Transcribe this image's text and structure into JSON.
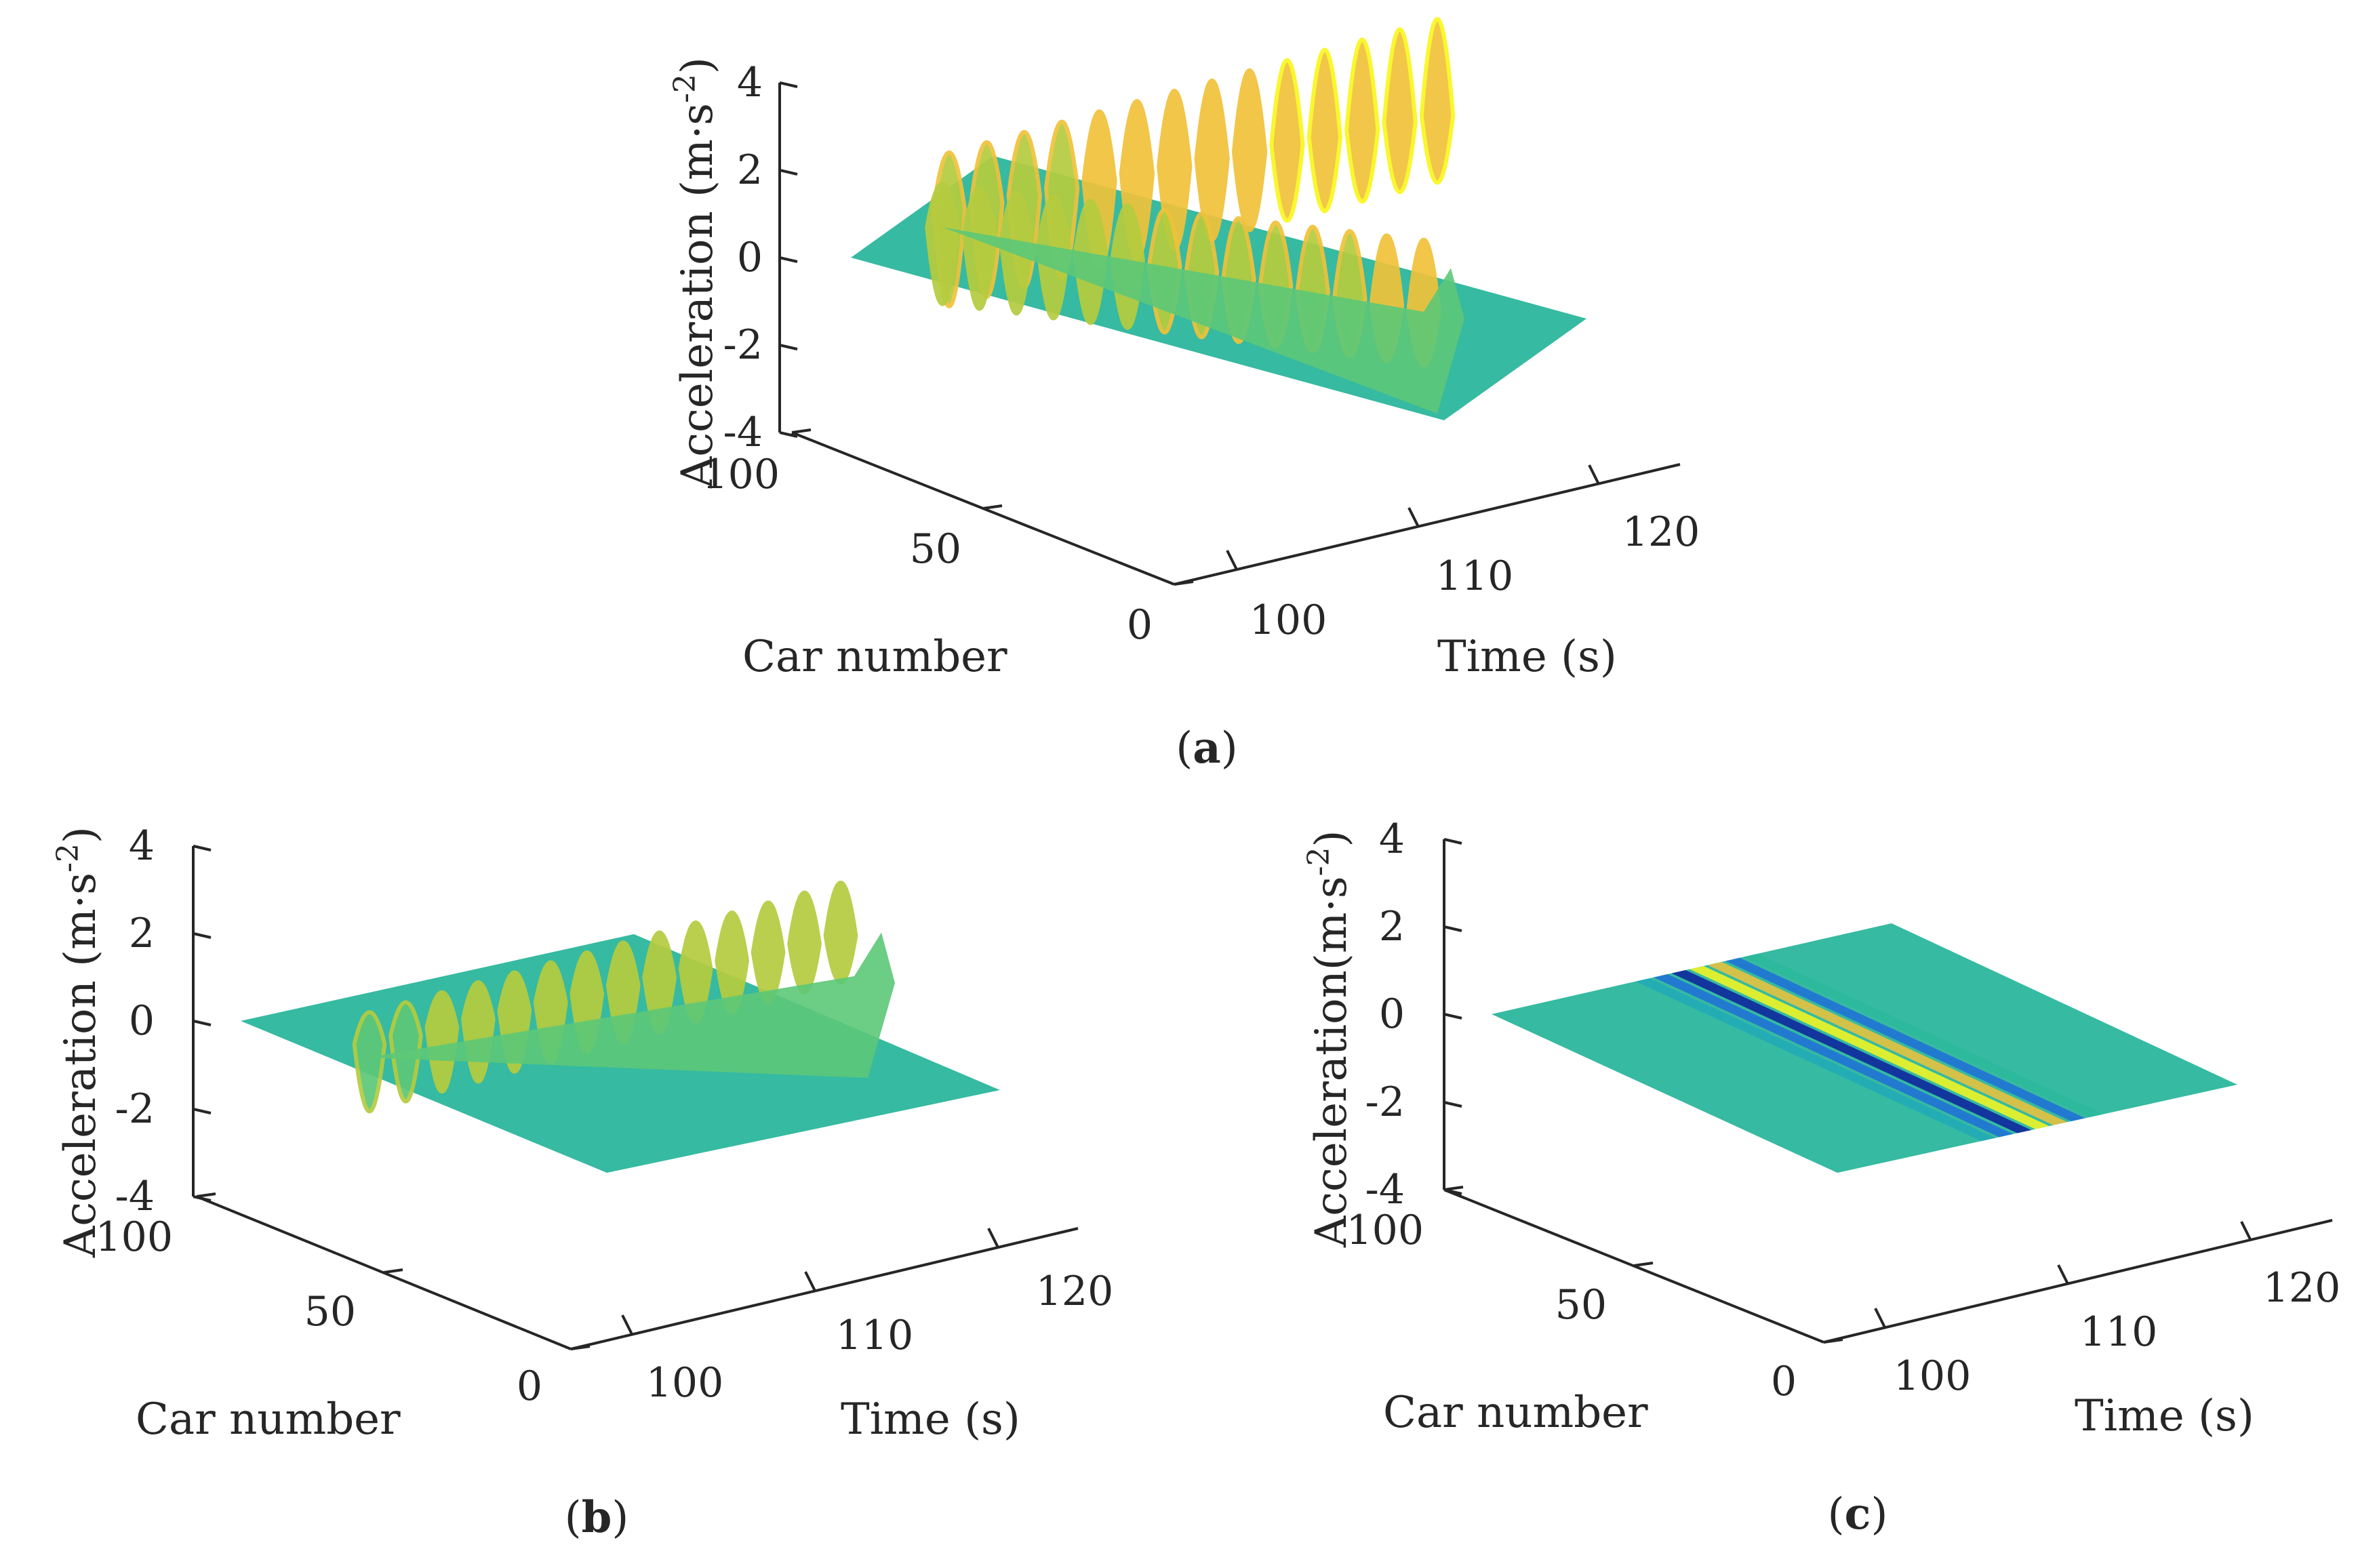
{
  "figure": {
    "panels": [
      {
        "id": "a",
        "label_open": "(",
        "label_letter": "a",
        "label_close": ")"
      },
      {
        "id": "b",
        "label_open": "(",
        "label_letter": "b",
        "label_close": ")"
      },
      {
        "id": "c",
        "label_open": "(",
        "label_letter": "c",
        "label_close": ")"
      }
    ]
  },
  "colors": {
    "axis": "#262626",
    "colormap": [
      "#0d1f9e",
      "#1f6fd8",
      "#21a9b8",
      "#2bb99a",
      "#5cc878",
      "#b5cc3f",
      "#f0c23a",
      "#f9f71e"
    ],
    "flat_surface": "#2bb69c"
  },
  "chart_data": [
    {
      "panel": "a",
      "type": "surface3d",
      "xlabel": "Time (s)",
      "ylabel": "Car number",
      "zlabel_main": "Acceleration (m·s",
      "zlabel_sup": "-2",
      "zlabel_close": ")",
      "xticks": [
        "100",
        "110",
        "120"
      ],
      "xlim": [
        95,
        125
      ],
      "yticks": [
        "0",
        "50",
        "100"
      ],
      "ylim": [
        0,
        100
      ],
      "zticks": [
        "-4",
        "-2",
        "0",
        "2",
        "4"
      ],
      "zlim": [
        -4,
        4
      ],
      "series": [
        {
          "name": "oscillation band 1",
          "amplitude_max": 4.0,
          "amplitude_min": -4.0,
          "oscillations": 14,
          "time_start": 99,
          "time_end": 121
        },
        {
          "name": "oscillation band 2",
          "amplitude_max": 3.0,
          "amplitude_min": -3.2,
          "oscillations": 14,
          "time_start": 99,
          "time_end": 121
        },
        {
          "name": "decay ridge",
          "amplitude_max": 1.0,
          "amplitude_min": -1.0,
          "time_start": 101,
          "time_end": 121
        }
      ]
    },
    {
      "panel": "b",
      "type": "surface3d",
      "xlabel": "Time (s)",
      "ylabel": "Car number",
      "zlabel_main": "Acceleration (m·s",
      "zlabel_sup": "-2",
      "zlabel_close": ")",
      "xticks": [
        "100",
        "110",
        "120"
      ],
      "xlim": [
        95,
        125
      ],
      "yticks": [
        "0",
        "50",
        "100"
      ],
      "ylim": [
        0,
        100
      ],
      "zticks": [
        "-4",
        "-2",
        "0",
        "2",
        "4"
      ],
      "zlim": [
        -4,
        4
      ],
      "series": [
        {
          "name": "oscillation band 1",
          "amplitude_max": 2.2,
          "amplitude_min": -2.8,
          "oscillations": 14,
          "time_start": 99,
          "time_end": 121
        },
        {
          "name": "decay ridge",
          "amplitude_max": 1.0,
          "amplitude_min": -1.0,
          "time_start": 101,
          "time_end": 121
        }
      ]
    },
    {
      "panel": "c",
      "type": "surface3d",
      "xlabel": "Time (s)",
      "ylabel": "Car number",
      "zlabel_main": "Acceleration(m·s",
      "zlabel_sup": "-2",
      "zlabel_close": ")",
      "xticks": [
        "100",
        "110",
        "120"
      ],
      "xlim": [
        95,
        125
      ],
      "yticks": [
        "0",
        "50",
        "100"
      ],
      "ylim": [
        0,
        100
      ],
      "zticks": [
        "-4",
        "-2",
        "0",
        "2",
        "4"
      ],
      "zlim": [
        -4,
        4
      ],
      "series": [
        {
          "name": "stripe pattern",
          "amplitude_max": 0.3,
          "amplitude_min": -0.3,
          "stripes": 5,
          "time_start": 100,
          "time_end": 121
        }
      ]
    }
  ]
}
